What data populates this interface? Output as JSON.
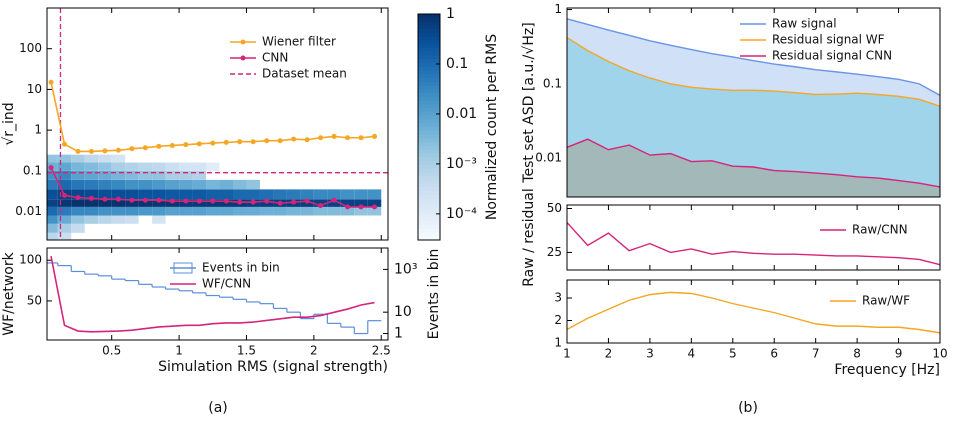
{
  "captions": [
    "(a)",
    "(b)"
  ],
  "chart_data": [
    {
      "type": "line",
      "log_y": true,
      "ylabel": "√r_ind",
      "xlim": [
        0.02,
        2.55
      ],
      "ylim": [
        0.002,
        1000
      ],
      "yticks": [
        {
          "value": 0.01,
          "label": "0.01"
        },
        {
          "value": 0.1,
          "label": "0.1"
        },
        1,
        10,
        100
      ],
      "x": [
        0.05,
        0.15,
        0.25,
        0.35,
        0.45,
        0.55,
        0.65,
        0.75,
        0.85,
        0.95,
        1.05,
        1.15,
        1.25,
        1.35,
        1.45,
        1.55,
        1.65,
        1.75,
        1.85,
        1.95,
        2.05,
        2.15,
        2.25,
        2.35,
        2.45
      ],
      "series": [
        {
          "name": "Wiener filter",
          "color": "#f5a623",
          "values": [
            15,
            0.45,
            0.3,
            0.3,
            0.31,
            0.32,
            0.35,
            0.37,
            0.4,
            0.42,
            0.44,
            0.46,
            0.48,
            0.5,
            0.52,
            0.52,
            0.55,
            0.55,
            0.6,
            0.58,
            0.65,
            0.7,
            0.65,
            0.65,
            0.7
          ]
        },
        {
          "name": "CNN",
          "color": "#d6247a",
          "values": [
            0.12,
            0.025,
            0.022,
            0.021,
            0.02,
            0.02,
            0.019,
            0.019,
            0.019,
            0.018,
            0.018,
            0.018,
            0.018,
            0.018,
            0.017,
            0.017,
            0.018,
            0.016,
            0.017,
            0.018,
            0.014,
            0.019,
            0.013,
            0.013,
            0.013
          ]
        }
      ],
      "dataset_mean": {
        "name": "Dataset mean",
        "color": "#d6247a",
        "x": 0.12,
        "y": 0.09
      },
      "legend": "upper right",
      "heatmap": {
        "xbins": [
          0,
          0.1,
          0.2,
          0.3,
          0.4,
          0.5,
          0.6,
          0.7,
          0.8,
          0.9,
          1.0,
          1.1,
          1.2,
          1.3,
          1.4,
          1.5,
          1.6,
          1.7,
          1.8,
          1.9,
          2.0,
          2.1,
          2.2,
          2.3,
          2.4,
          2.5
        ],
        "ybins": [
          0.002,
          0.003,
          0.005,
          0.008,
          0.013,
          0.02,
          0.035,
          0.06,
          0.1,
          0.16,
          0.25
        ],
        "values": [
          [
            0.0006,
            0.0003,
            null,
            null,
            null,
            null,
            null,
            null,
            null,
            null,
            null,
            null,
            null,
            null,
            null,
            null,
            null,
            null,
            null,
            null,
            null,
            null,
            null,
            null,
            null
          ],
          [
            0.003,
            0.001,
            0.0004,
            null,
            null,
            null,
            null,
            null,
            null,
            null,
            null,
            null,
            null,
            null,
            null,
            null,
            null,
            null,
            null,
            null,
            null,
            null,
            null,
            null,
            null
          ],
          [
            0.02,
            0.006,
            0.002,
            0.001,
            0.0006,
            0.0004,
            0.0003,
            null,
            0.0002,
            null,
            null,
            null,
            null,
            null,
            null,
            null,
            null,
            null,
            null,
            null,
            null,
            null,
            null,
            null,
            null
          ],
          [
            0.1,
            0.05,
            0.03,
            0.03,
            0.02,
            0.02,
            0.02,
            0.015,
            0.015,
            0.01,
            0.01,
            0.01,
            0.008,
            0.008,
            0.006,
            0.006,
            0.005,
            0.005,
            0.004,
            0.004,
            0.003,
            0.003,
            0.003,
            0.002,
            0.002
          ],
          [
            0.5,
            0.8,
            0.9,
            0.9,
            0.9,
            0.9,
            0.8,
            0.8,
            0.8,
            0.8,
            0.7,
            0.7,
            0.7,
            0.7,
            0.7,
            0.6,
            0.6,
            0.6,
            0.6,
            0.6,
            0.5,
            0.5,
            0.5,
            0.5,
            0.5
          ],
          [
            0.3,
            0.5,
            0.4,
            0.35,
            0.3,
            0.3,
            0.3,
            0.25,
            0.25,
            0.2,
            0.2,
            0.2,
            0.15,
            0.15,
            0.1,
            0.1,
            0.08,
            0.06,
            0.05,
            0.04,
            0.03,
            0.03,
            0.02,
            0.02,
            0.02
          ],
          [
            0.05,
            0.1,
            0.06,
            0.05,
            0.04,
            0.03,
            0.02,
            0.02,
            0.015,
            0.01,
            0.008,
            0.006,
            0.004,
            0.005,
            0.003,
            0.002,
            null,
            null,
            null,
            null,
            null,
            null,
            null,
            null,
            null
          ],
          [
            0.02,
            0.03,
            0.01,
            0.008,
            0.006,
            0.004,
            0.003,
            0.002,
            0.002,
            0.001,
            0.001,
            0.0008,
            null,
            null,
            null,
            null,
            null,
            null,
            null,
            null,
            null,
            null,
            null,
            null,
            null
          ],
          [
            0.005,
            0.008,
            0.004,
            0.003,
            0.002,
            0.001,
            0.0008,
            0.0006,
            0.0005,
            0.0003,
            0.0002,
            0.0002,
            0.0001,
            null,
            null,
            null,
            null,
            null,
            null,
            null,
            null,
            null,
            null,
            null,
            null
          ],
          [
            0.002,
            0.002,
            0.001,
            0.0005,
            0.0003,
            0.0002,
            null,
            null,
            null,
            null,
            null,
            null,
            null,
            null,
            null,
            null,
            null,
            null,
            null,
            null,
            null,
            null,
            null,
            null,
            null
          ]
        ]
      },
      "colorbar": {
        "label": "Normalized count per RMS",
        "lim": [
          3e-05,
          1
        ],
        "ticks": [
          1,
          {
            "value": 0.1,
            "label": "0.1"
          },
          {
            "value": 0.01,
            "label": "0.01"
          },
          {
            "value": 0.001,
            "label": "10⁻³"
          },
          {
            "value": 0.0001,
            "label": "10⁻⁴"
          }
        ]
      }
    },
    {
      "type": "line",
      "xlabel": "Simulation RMS (signal strength)",
      "ylabel": "WF/network",
      "y2label": "Events in bin",
      "xlim": [
        0.02,
        2.55
      ],
      "xticks": [
        0.5,
        1.0,
        1.5,
        2.0,
        2.5
      ],
      "ylim": [
        2,
        115
      ],
      "yticks": [
        50,
        100
      ],
      "y2log": true,
      "y2lim": [
        0.5,
        10000
      ],
      "y2ticks": [
        1,
        10,
        {
          "value": 1000,
          "label": "10³"
        }
      ],
      "x": [
        0.05,
        0.15,
        0.25,
        0.35,
        0.45,
        0.55,
        0.65,
        0.75,
        0.85,
        0.95,
        1.05,
        1.15,
        1.25,
        1.35,
        1.45,
        1.55,
        1.65,
        1.75,
        1.85,
        1.95,
        2.05,
        2.15,
        2.25,
        2.35,
        2.45
      ],
      "series": [
        {
          "name": "Events in bin",
          "color": "#5b8fd9",
          "axis": "y2",
          "bins": [
            0,
            0.1,
            0.2,
            0.3,
            0.4,
            0.5,
            0.6,
            0.7,
            0.8,
            0.9,
            1.0,
            1.1,
            1.2,
            1.3,
            1.4,
            1.5,
            1.6,
            1.7,
            1.8,
            1.9,
            2.0,
            2.1,
            2.2,
            2.3,
            2.4,
            2.5
          ],
          "values": [
            2000,
            1500,
            800,
            600,
            500,
            350,
            300,
            200,
            150,
            120,
            100,
            80,
            60,
            50,
            40,
            30,
            25,
            15,
            10,
            5,
            8,
            3,
            2,
            1,
            4
          ]
        },
        {
          "name": "WF/CNN",
          "color": "#d6247a",
          "values": [
            105,
            20,
            13,
            12,
            12.5,
            13,
            14,
            16,
            18,
            19,
            20,
            20,
            22,
            23,
            23,
            24,
            26,
            28,
            30,
            30,
            32,
            36,
            40,
            45,
            48
          ]
        }
      ]
    },
    {
      "type": "area",
      "log_y": true,
      "ylabel": "Test set ASD [a.u./√Hz]",
      "xlim": [
        1,
        10
      ],
      "ylim": [
        0.003,
        1.05
      ],
      "yticks": [
        {
          "value": 0.01,
          "label": "0.01"
        },
        {
          "value": 0.1,
          "label": "0.1"
        },
        1
      ],
      "x": [
        1,
        1.5,
        2,
        2.5,
        3,
        3.5,
        4,
        4.5,
        5,
        5.5,
        6,
        6.5,
        7,
        7.5,
        8,
        8.5,
        9,
        9.5,
        10
      ],
      "series": [
        {
          "name": "Raw signal",
          "color": "#6a94e6",
          "fill": "#cfe0f7",
          "values": [
            0.75,
            0.63,
            0.53,
            0.45,
            0.38,
            0.33,
            0.29,
            0.255,
            0.23,
            0.205,
            0.185,
            0.17,
            0.155,
            0.145,
            0.135,
            0.125,
            0.115,
            0.1,
            0.07
          ]
        },
        {
          "name": "Residual signal WF",
          "color": "#f5a623",
          "fill": "#9fd4ea",
          "values": [
            0.42,
            0.28,
            0.2,
            0.15,
            0.12,
            0.1,
            0.09,
            0.085,
            0.082,
            0.082,
            0.08,
            0.076,
            0.072,
            0.073,
            0.075,
            0.072,
            0.068,
            0.062,
            0.05
          ]
        },
        {
          "name": "Residual signal CNN",
          "color": "#d6247a",
          "fill": "#a3b8b9",
          "values": [
            0.014,
            0.018,
            0.013,
            0.015,
            0.011,
            0.0115,
            0.009,
            0.0092,
            0.0078,
            0.0076,
            0.0068,
            0.0066,
            0.0063,
            0.006,
            0.0056,
            0.0054,
            0.005,
            0.0046,
            0.0041
          ]
        }
      ]
    },
    {
      "type": "line",
      "ylabel": "Raw / residual",
      "xlim": [
        1,
        10
      ],
      "ylim": [
        15,
        52
      ],
      "yticks": [
        25,
        50
      ],
      "x": [
        1,
        1.5,
        2,
        2.5,
        3,
        3.5,
        4,
        4.5,
        5,
        5.5,
        6,
        6.5,
        7,
        7.5,
        8,
        8.5,
        9,
        9.5,
        10
      ],
      "series": [
        {
          "name": "Raw/CNN",
          "color": "#d6247a",
          "values": [
            42,
            29,
            36,
            26,
            30,
            25,
            27,
            24,
            25.5,
            24.5,
            24,
            24,
            23.5,
            23,
            23,
            22.5,
            22,
            21,
            18
          ]
        }
      ]
    },
    {
      "type": "line",
      "xlabel": "Frequency [Hz]",
      "xlim": [
        1,
        10
      ],
      "xticks": [
        1,
        2,
        3,
        4,
        5,
        6,
        7,
        8,
        9,
        10
      ],
      "ylim": [
        1,
        3.8
      ],
      "yticks": [
        1,
        2,
        3
      ],
      "x": [
        1,
        1.5,
        2,
        2.5,
        3,
        3.5,
        4,
        4.5,
        5,
        5.5,
        6,
        6.5,
        7,
        7.5,
        8,
        8.5,
        9,
        9.5,
        10
      ],
      "series": [
        {
          "name": "Raw/WF",
          "color": "#f5a623",
          "values": [
            1.6,
            2.1,
            2.5,
            2.9,
            3.15,
            3.25,
            3.2,
            3.0,
            2.75,
            2.55,
            2.35,
            2.1,
            1.85,
            1.75,
            1.75,
            1.7,
            1.7,
            1.6,
            1.45
          ]
        }
      ]
    }
  ]
}
